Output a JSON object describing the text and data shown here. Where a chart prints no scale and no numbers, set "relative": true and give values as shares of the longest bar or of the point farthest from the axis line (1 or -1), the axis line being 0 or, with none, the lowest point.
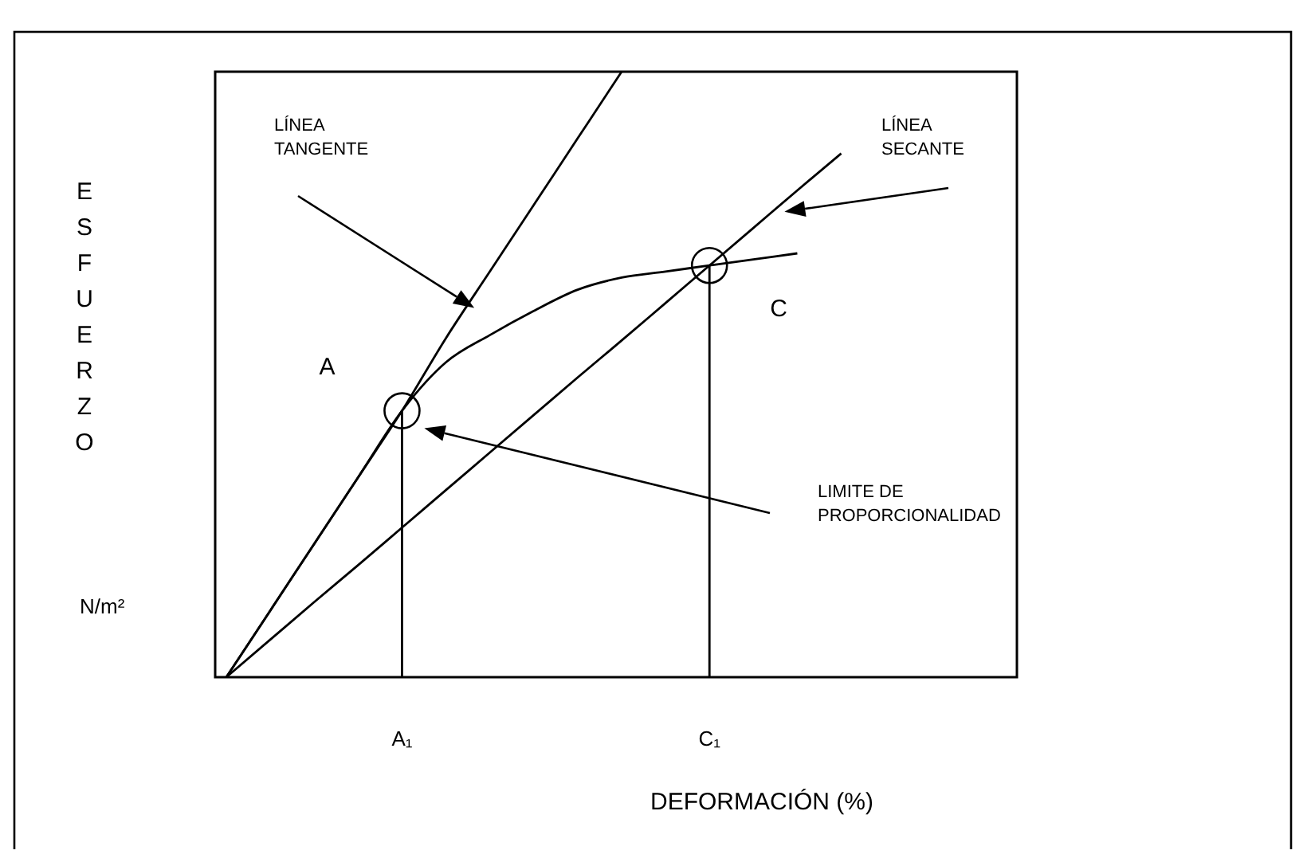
{
  "chart_data": {
    "type": "line",
    "relative": true,
    "xlabel": "DEFORMACIÓN (%)",
    "categories": [
      null,
      null,
      null,
      null,
      "A₁",
      null,
      null,
      null,
      null,
      null,
      null,
      "C₁",
      null,
      null,
      null,
      null,
      null,
      null,
      null
    ],
    "series": [
      {
        "color": "#000000",
        "values": [
          0,
          0.11,
          0.22,
          0.33,
          0.44,
          0.52,
          0.565,
          0.605,
          0.64,
          0.66,
          0.67,
          0.68,
          0.69,
          0.7,
          null,
          null,
          null,
          null,
          null
        ]
      },
      {
        "color": "#000000",
        "values": [
          0,
          0.11,
          0.22,
          0.33,
          0.44,
          0.56,
          0.67,
          0.78,
          0.89,
          1,
          null,
          null,
          null,
          null,
          null,
          null,
          null,
          null,
          null
        ]
      },
      {
        "color": "#000000",
        "values": [
          0,
          0.062,
          0.124,
          0.185,
          0.247,
          0.309,
          0.371,
          0.433,
          0.495,
          0.556,
          0.618,
          0.68,
          0.742,
          0.804,
          0.865,
          null,
          null,
          null,
          null
        ]
      }
    ],
    "ref_lines": [
      {
        "axis": "x",
        "value": "A₁",
        "color": "#000000"
      },
      {
        "axis": "x",
        "value": "C₁",
        "color": "#000000"
      }
    ],
    "annotations": [
      "ESFUERZO",
      "N/m²",
      "LÍNEA TANGENTE",
      "LÍNEA SECANTE",
      "A",
      "C",
      "LIMITE DE PROPORCIONALIDAD"
    ],
    "line_style": "solid"
  }
}
